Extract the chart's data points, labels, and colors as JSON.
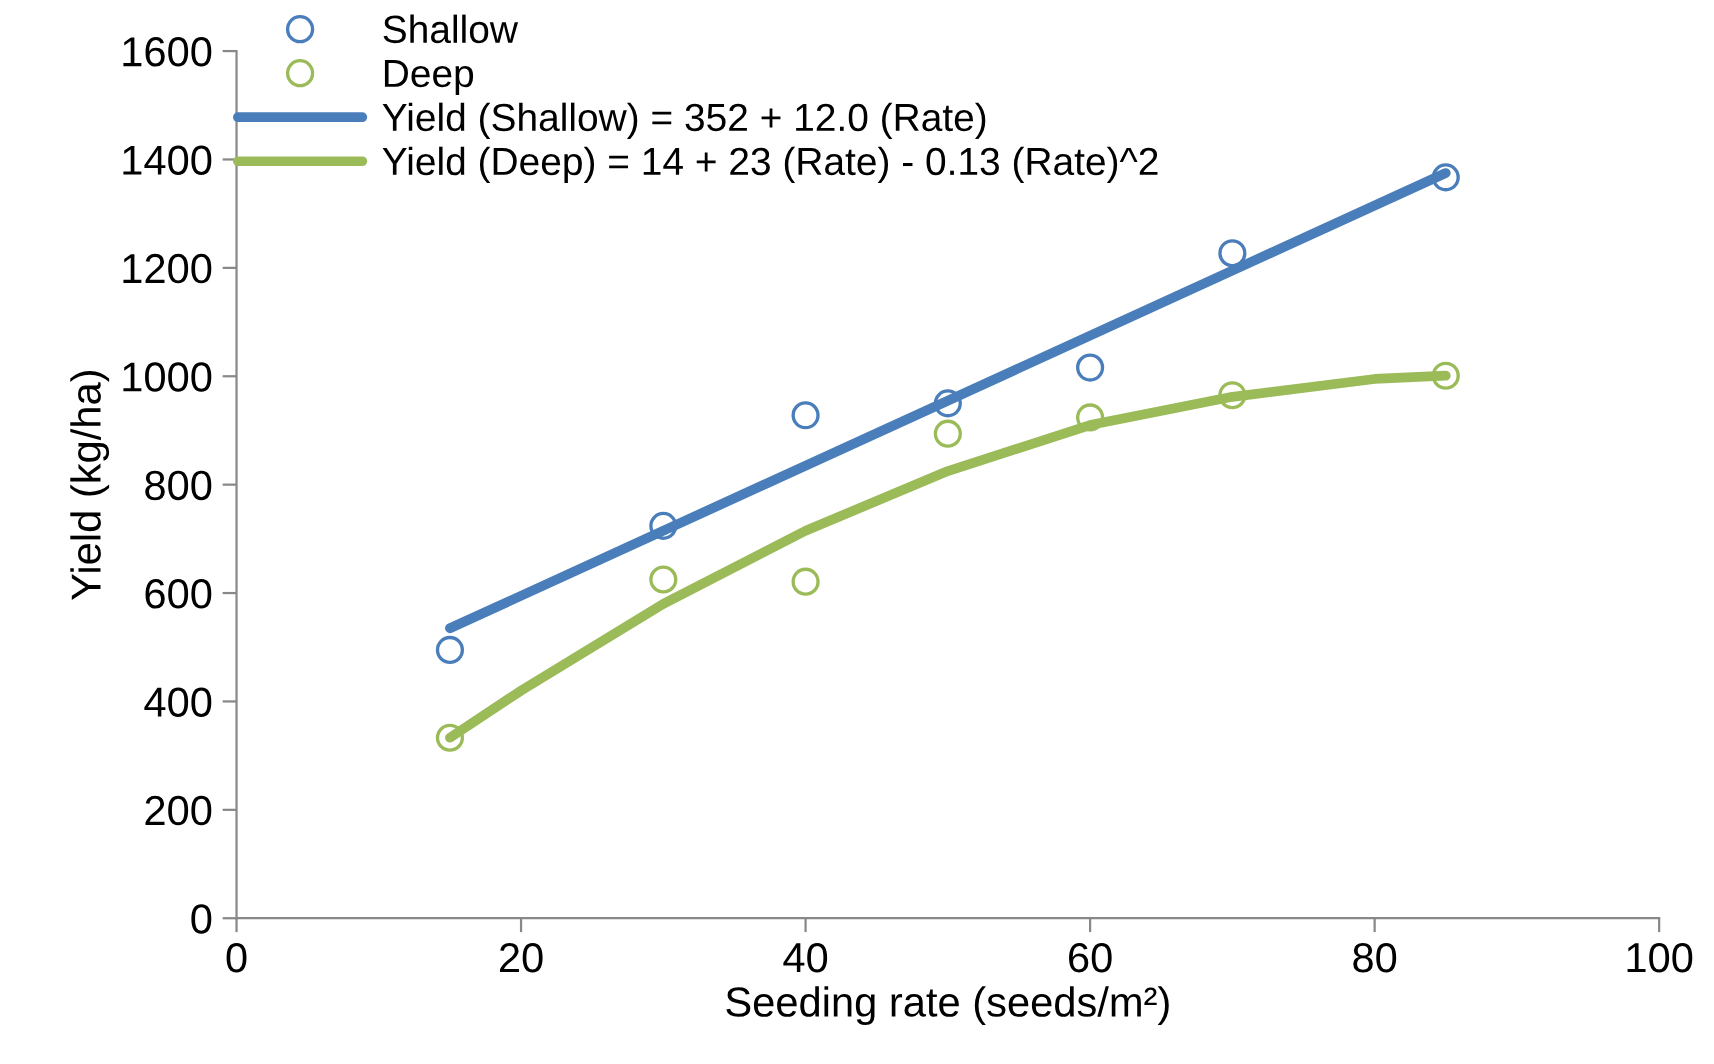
{
  "chart_data": {
    "type": "scatter",
    "xlabel": "Seeding rate (seeds/m²)",
    "ylabel": "Yield (kg/ha)",
    "xlim": [
      0,
      100
    ],
    "xticks": [
      0,
      20,
      40,
      60,
      80,
      100
    ],
    "ylim": [
      0,
      1600
    ],
    "yticks": [
      0,
      200,
      400,
      600,
      800,
      1000,
      1200,
      1400,
      1600
    ],
    "grid": false,
    "legend": "top left",
    "series": [
      {
        "name": "Shallow",
        "marker": "circle",
        "color": "#4a7ebb",
        "x": [
          15,
          30,
          40,
          50,
          60,
          70,
          85
        ],
        "values": [
          495,
          724,
          928,
          950,
          1016,
          1227,
          1367
        ]
      },
      {
        "name": "Deep",
        "marker": "circle",
        "color": "#9bbb59",
        "x": [
          15,
          30,
          40,
          50,
          60,
          70,
          85
        ],
        "values": [
          333,
          625,
          621,
          894,
          924,
          965,
          1001
        ]
      },
      {
        "name": "Yield (Shallow) = 352 + 12.0 (Rate)",
        "type": "line",
        "marker": "none",
        "color": "#4a7ebb",
        "x": [
          15,
          85
        ],
        "values": [
          535,
          1375
        ]
      },
      {
        "name": "Yield (Deep) = 14 + 23 (Rate) - 0.13 (Rate)^2",
        "type": "line",
        "marker": "none",
        "color": "#9bbb59",
        "x": [
          15,
          20,
          30,
          40,
          50,
          60,
          70,
          80,
          85
        ],
        "values": [
          333,
          420,
          580,
          715,
          825,
          910,
          962,
          995,
          1001
        ]
      }
    ]
  }
}
